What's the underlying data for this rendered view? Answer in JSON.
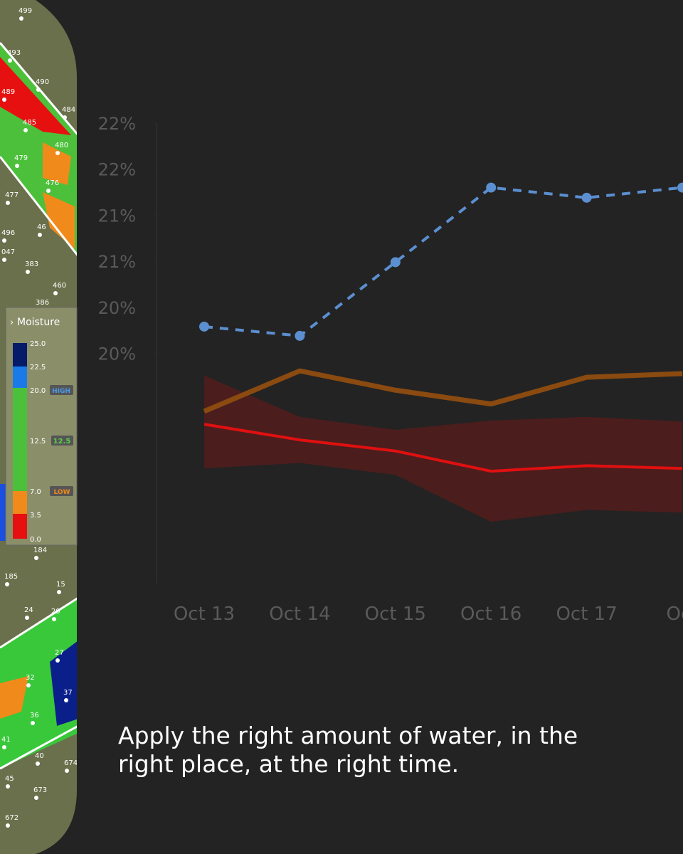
{
  "map": {
    "labels": [
      "499",
      "493",
      "490",
      "484",
      "485",
      "489",
      "479",
      "480",
      "476",
      "477",
      "496",
      "047",
      "383",
      "46",
      "460",
      "386",
      "184",
      "185",
      "15",
      "24",
      "29",
      "27",
      "32",
      "37",
      "36",
      "41",
      "40",
      "674",
      "45",
      "673",
      "672"
    ],
    "legend": {
      "title": "Moisture",
      "stops": [
        "25.0",
        "22.5",
        "20.0",
        "12.5",
        "7.0",
        "3.5",
        "0.0"
      ],
      "high": "HIGH",
      "target": "12.5",
      "low": "LOW"
    }
  },
  "chart_data": {
    "type": "line",
    "categories": [
      "Oct 13",
      "Oct 14",
      "Oct 15",
      "Oct 16",
      "Oct 17",
      "Oct"
    ],
    "ylim": [
      17,
      22
    ],
    "yticks": [
      {
        "value": 22,
        "label": "22%"
      },
      {
        "value": 21.5,
        "label": "22%"
      },
      {
        "value": 21,
        "label": "21%"
      },
      {
        "value": 20.5,
        "label": "21%"
      },
      {
        "value": 20,
        "label": "20%"
      },
      {
        "value": 19.5,
        "label": "20%"
      }
    ],
    "series": [
      {
        "color": "#5b8fd0",
        "style": "dashed",
        "markers": true,
        "values": [
          19.79,
          19.69,
          20.49,
          21.3,
          21.19,
          21.3
        ]
      },
      {
        "color": "#8a4a10",
        "style": "solid",
        "markers": false,
        "values": [
          18.87,
          19.31,
          19.1,
          18.95,
          19.24,
          19.28
        ]
      },
      {
        "color": "#e01010",
        "style": "solid",
        "markers": false,
        "values": [
          18.73,
          18.56,
          18.44,
          18.22,
          18.28,
          18.25
        ]
      }
    ],
    "band": {
      "color": "#5a1c1c",
      "upper": [
        19.26,
        18.81,
        18.67,
        18.77,
        18.81,
        18.76
      ],
      "lower": [
        18.25,
        18.31,
        18.18,
        17.67,
        17.8,
        17.77
      ]
    }
  },
  "caption": "Apply the right amount of water, in the right place, at the right time."
}
